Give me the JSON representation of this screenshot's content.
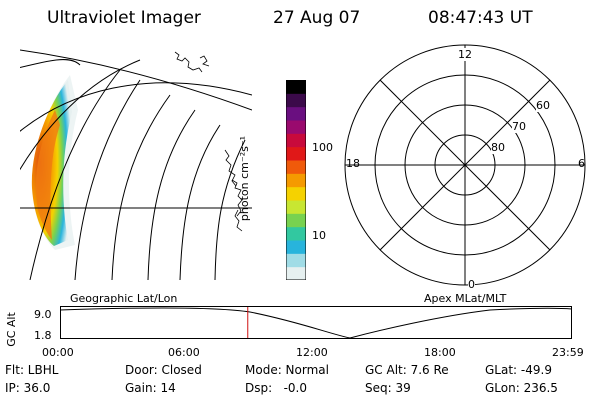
{
  "header": {
    "title": "Ultraviolet Imager",
    "date": "27 Aug 07",
    "time": "08:47:43 UT"
  },
  "colorbar": {
    "unit_label": "photon cm⁻²s⁻¹",
    "ticks": [
      "100",
      "10"
    ],
    "colors": [
      "#000000",
      "#3b0a4a",
      "#6a0f80",
      "#9a0a6e",
      "#c80a3c",
      "#e01818",
      "#f05a0a",
      "#f59a00",
      "#f5d200",
      "#c8e632",
      "#78d250",
      "#32c8a0",
      "#28b4dc",
      "#a0dce6",
      "#e6f0f0"
    ]
  },
  "polar": {
    "labels": {
      "top": "12",
      "left": "18",
      "right": "6",
      "bottom": "0"
    },
    "ring_labels": [
      "60",
      "70",
      "80"
    ]
  },
  "panel_labels": {
    "left": "Geographic Lat/Lon",
    "right": "Apex MLat/MLT"
  },
  "alt_plot": {
    "ylabel": "GC Alt",
    "yticks": [
      "9.0",
      "1.8"
    ],
    "xticks": [
      "00:00",
      "06:00",
      "12:00",
      "18:00",
      "23:59"
    ],
    "marker_time": "08:47:43",
    "marker_color": "#d01010"
  },
  "info": {
    "row1": [
      "Flt: LBHL",
      "Door: Closed",
      "Mode: Normal",
      "GC Alt: 7.6 Re",
      "GLat: -49.9"
    ],
    "row2": [
      "IP: 36.0",
      "Gain: 14",
      "Dsp:   -0.0",
      "Seq: 39",
      "GLon: 236.5"
    ]
  }
}
